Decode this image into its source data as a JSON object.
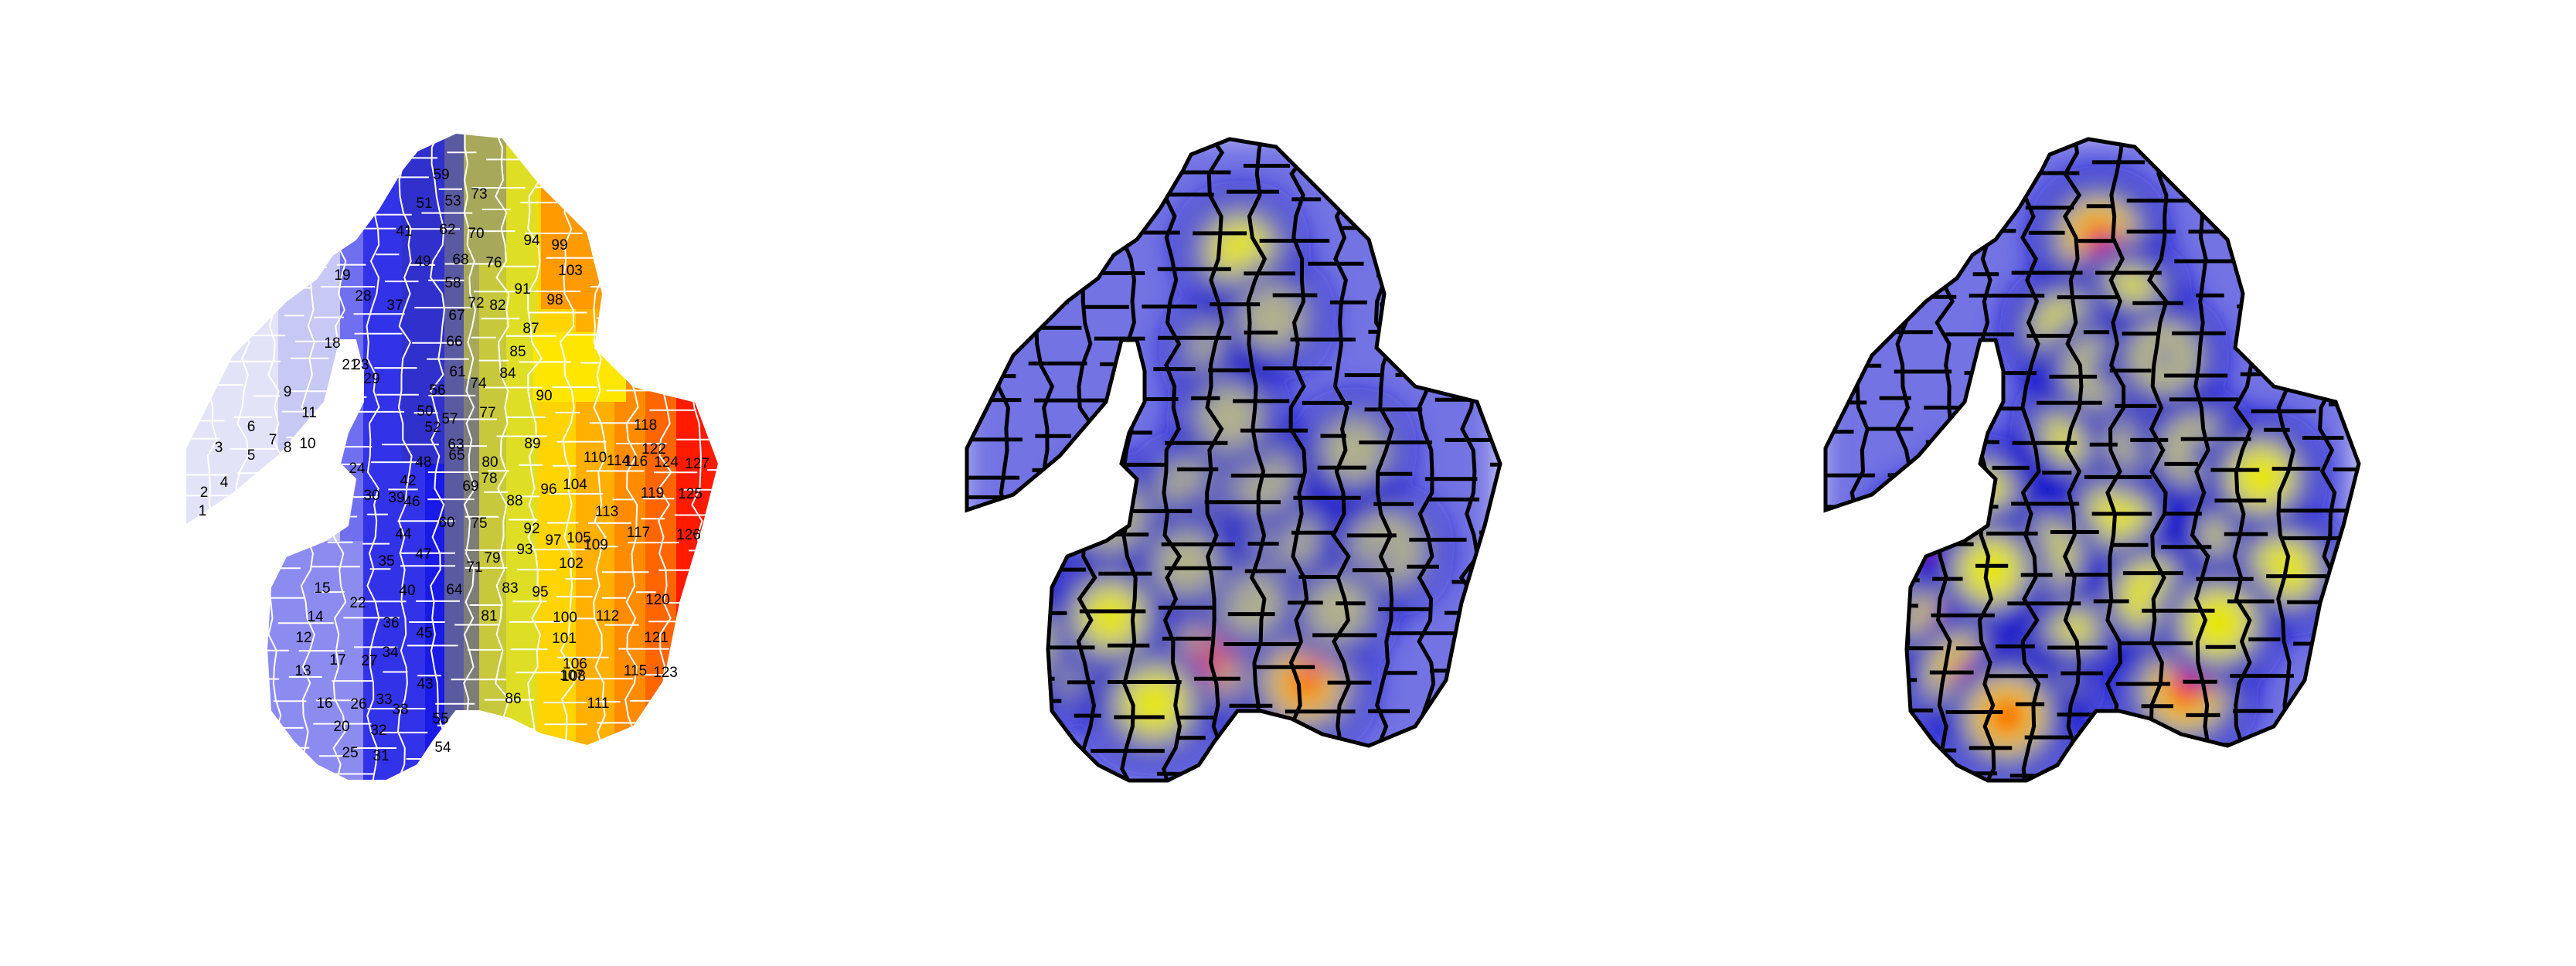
{
  "figure": {
    "panels": [
      {
        "id": "region-map",
        "type": "choropleth",
        "region_count": 127,
        "color_scale": [
          "#e8e8f8",
          "#8c8cf0",
          "#2020e0",
          "#6b6b8f",
          "#b3b355",
          "#e8e820",
          "#ffd200",
          "#ff9a00",
          "#ff5a00",
          "#ff0000"
        ],
        "labels": [
          "1",
          "2",
          "3",
          "4",
          "5",
          "6",
          "7",
          "8",
          "9",
          "10",
          "11",
          "12",
          "13",
          "14",
          "15",
          "16",
          "17",
          "18",
          "19",
          "20",
          "21",
          "22",
          "23",
          "24",
          "25",
          "26",
          "27",
          "28",
          "29",
          "30",
          "31",
          "32",
          "33",
          "34",
          "35",
          "36",
          "37",
          "38",
          "39",
          "40",
          "41",
          "42",
          "43",
          "44",
          "45",
          "46",
          "47",
          "48",
          "49",
          "50",
          "51",
          "52",
          "53",
          "54",
          "55",
          "56",
          "57",
          "58",
          "59",
          "60",
          "61",
          "62",
          "63",
          "64",
          "65",
          "66",
          "67",
          "68",
          "69",
          "70",
          "71",
          "72",
          "73",
          "74",
          "75",
          "76",
          "77",
          "78",
          "79",
          "80",
          "81",
          "82",
          "83",
          "84",
          "85",
          "86",
          "87",
          "88",
          "89",
          "90",
          "91",
          "92",
          "93",
          "94",
          "95",
          "96",
          "97",
          "98",
          "99",
          "100",
          "101",
          "102",
          "103",
          "104",
          "105",
          "106",
          "107",
          "108",
          "109",
          "110",
          "111",
          "112",
          "113",
          "114",
          "115",
          "116",
          "117",
          "118",
          "119",
          "120",
          "121",
          "122",
          "123",
          "124",
          "125",
          "126",
          "127"
        ]
      },
      {
        "id": "heatmap-low",
        "type": "heatmap",
        "palette": [
          "#ffffff",
          "#0000cc",
          "#e6e600",
          "#ff0000"
        ],
        "hotspots": [
          [
            0.52,
            0.18,
            0.7
          ],
          [
            0.49,
            0.33,
            0.5
          ],
          [
            0.43,
            0.55,
            0.6
          ],
          [
            0.46,
            0.8,
            0.9
          ],
          [
            0.22,
            0.74,
            0.5
          ],
          [
            0.18,
            0.8,
            0.5
          ],
          [
            0.28,
            0.58,
            0.5
          ],
          [
            0.6,
            0.61,
            0.5
          ],
          [
            0.64,
            0.83,
            0.9
          ],
          [
            0.79,
            0.63,
            0.6
          ],
          [
            0.54,
            0.71,
            0.4
          ],
          [
            0.36,
            0.86,
            0.8
          ],
          [
            0.73,
            0.48,
            0.4
          ],
          [
            0.56,
            0.52,
            0.4
          ],
          [
            0.28,
            0.73,
            0.7
          ],
          [
            0.12,
            0.77,
            0.4
          ],
          [
            0.5,
            0.43,
            0.4
          ],
          [
            0.7,
            0.72,
            0.4
          ],
          [
            0.42,
            0.65,
            0.4
          ],
          [
            0.58,
            0.28,
            0.4
          ]
        ]
      },
      {
        "id": "heatmap-high",
        "type": "heatmap",
        "palette": [
          "#ffffff",
          "#0000cc",
          "#e6e600",
          "#ff0000"
        ],
        "hotspots": [
          [
            0.52,
            0.16,
            0.9
          ],
          [
            0.57,
            0.26,
            0.8
          ],
          [
            0.46,
            0.3,
            0.7
          ],
          [
            0.2,
            0.62,
            0.9
          ],
          [
            0.13,
            0.71,
            0.8
          ],
          [
            0.23,
            0.75,
            0.9
          ],
          [
            0.3,
            0.56,
            0.8
          ],
          [
            0.28,
            0.82,
            1.0
          ],
          [
            0.4,
            0.83,
            0.9
          ],
          [
            0.48,
            0.72,
            0.8
          ],
          [
            0.55,
            0.58,
            0.7
          ],
          [
            0.62,
            0.7,
            0.8
          ],
          [
            0.68,
            0.84,
            1.0
          ],
          [
            0.78,
            0.6,
            0.8
          ],
          [
            0.86,
            0.66,
            0.7
          ],
          [
            0.74,
            0.74,
            0.8
          ],
          [
            0.48,
            0.45,
            0.7
          ],
          [
            0.41,
            0.64,
            0.8
          ],
          [
            0.35,
            0.88,
            0.9
          ],
          [
            0.6,
            0.46,
            0.6
          ],
          [
            0.7,
            0.48,
            0.6
          ],
          [
            0.82,
            0.52,
            0.7
          ],
          [
            0.52,
            0.36,
            0.6
          ],
          [
            0.64,
            0.34,
            0.6
          ],
          [
            0.32,
            0.66,
            0.7
          ]
        ]
      }
    ]
  }
}
